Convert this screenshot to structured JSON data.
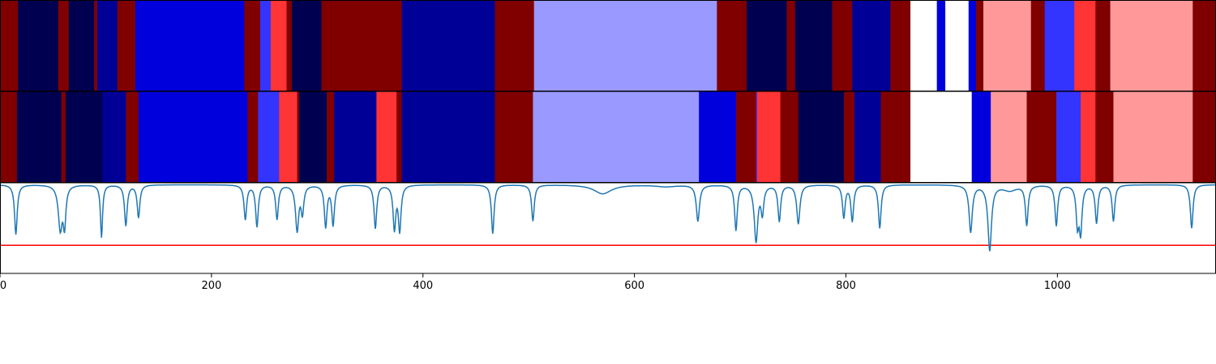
{
  "chart_data": {
    "type": "heatmap",
    "title": "",
    "xlabel": "",
    "ylabel": "",
    "xlim": [
      0,
      1150
    ],
    "x_ticks": [
      0,
      200,
      400,
      600,
      800,
      1000
    ],
    "colors": {
      "dark_red": "#800000",
      "navy": "#000050",
      "dark_blue": "#000096",
      "blue": "#0000dc",
      "bright_blue": "#3434ff",
      "light_blue": "#9999ff",
      "red": "#ff3434",
      "pink": "#ff9999",
      "white": "#ffffff",
      "signal_line": "#1f77b4",
      "threshold_line": "#ff0000"
    },
    "rows": [
      {
        "segments": [
          {
            "start": 0,
            "end": 17,
            "color": "dark_red"
          },
          {
            "start": 17,
            "end": 55,
            "color": "navy"
          },
          {
            "start": 55,
            "end": 65,
            "color": "dark_red"
          },
          {
            "start": 65,
            "end": 89,
            "color": "navy"
          },
          {
            "start": 89,
            "end": 92,
            "color": "dark_red"
          },
          {
            "start": 92,
            "end": 111,
            "color": "dark_blue"
          },
          {
            "start": 111,
            "end": 128,
            "color": "dark_red"
          },
          {
            "start": 128,
            "end": 231,
            "color": "blue"
          },
          {
            "start": 231,
            "end": 246,
            "color": "dark_red"
          },
          {
            "start": 246,
            "end": 256,
            "color": "bright_blue"
          },
          {
            "start": 256,
            "end": 271,
            "color": "red"
          },
          {
            "start": 271,
            "end": 276,
            "color": "dark_red"
          },
          {
            "start": 276,
            "end": 304,
            "color": "navy"
          },
          {
            "start": 304,
            "end": 380,
            "color": "dark_red"
          },
          {
            "start": 380,
            "end": 468,
            "color": "dark_blue"
          },
          {
            "start": 468,
            "end": 505,
            "color": "dark_red"
          },
          {
            "start": 505,
            "end": 678,
            "color": "light_blue"
          },
          {
            "start": 678,
            "end": 706,
            "color": "dark_red"
          },
          {
            "start": 706,
            "end": 744,
            "color": "navy"
          },
          {
            "start": 744,
            "end": 752,
            "color": "dark_red"
          },
          {
            "start": 752,
            "end": 787,
            "color": "navy"
          },
          {
            "start": 787,
            "end": 806,
            "color": "dark_red"
          },
          {
            "start": 806,
            "end": 842,
            "color": "dark_blue"
          },
          {
            "start": 842,
            "end": 861,
            "color": "dark_red"
          },
          {
            "start": 861,
            "end": 886,
            "color": "white"
          },
          {
            "start": 886,
            "end": 894,
            "color": "blue"
          },
          {
            "start": 894,
            "end": 916,
            "color": "white"
          },
          {
            "start": 916,
            "end": 923,
            "color": "blue"
          },
          {
            "start": 923,
            "end": 930,
            "color": "dark_red"
          },
          {
            "start": 930,
            "end": 975,
            "color": "pink"
          },
          {
            "start": 975,
            "end": 988,
            "color": "dark_red"
          },
          {
            "start": 988,
            "end": 1016,
            "color": "bright_blue"
          },
          {
            "start": 1016,
            "end": 1036,
            "color": "red"
          },
          {
            "start": 1036,
            "end": 1050,
            "color": "dark_red"
          },
          {
            "start": 1050,
            "end": 1128,
            "color": "pink"
          },
          {
            "start": 1128,
            "end": 1150,
            "color": "dark_red"
          }
        ]
      },
      {
        "segments": [
          {
            "start": 0,
            "end": 16,
            "color": "dark_red"
          },
          {
            "start": 16,
            "end": 58,
            "color": "navy"
          },
          {
            "start": 58,
            "end": 62,
            "color": "dark_red"
          },
          {
            "start": 62,
            "end": 97,
            "color": "navy"
          },
          {
            "start": 97,
            "end": 119,
            "color": "dark_blue"
          },
          {
            "start": 119,
            "end": 131,
            "color": "dark_red"
          },
          {
            "start": 131,
            "end": 234,
            "color": "blue"
          },
          {
            "start": 234,
            "end": 244,
            "color": "dark_red"
          },
          {
            "start": 244,
            "end": 264,
            "color": "bright_blue"
          },
          {
            "start": 264,
            "end": 281,
            "color": "red"
          },
          {
            "start": 281,
            "end": 283,
            "color": "dark_red"
          },
          {
            "start": 283,
            "end": 309,
            "color": "navy"
          },
          {
            "start": 309,
            "end": 316,
            "color": "dark_red"
          },
          {
            "start": 316,
            "end": 356,
            "color": "dark_blue"
          },
          {
            "start": 356,
            "end": 375,
            "color": "red"
          },
          {
            "start": 375,
            "end": 380,
            "color": "dark_red"
          },
          {
            "start": 380,
            "end": 468,
            "color": "dark_blue"
          },
          {
            "start": 468,
            "end": 504,
            "color": "dark_red"
          },
          {
            "start": 504,
            "end": 661,
            "color": "light_blue"
          },
          {
            "start": 661,
            "end": 696,
            "color": "blue"
          },
          {
            "start": 696,
            "end": 715,
            "color": "dark_red"
          },
          {
            "start": 715,
            "end": 716,
            "color": "bright_blue"
          },
          {
            "start": 716,
            "end": 738,
            "color": "red"
          },
          {
            "start": 738,
            "end": 755,
            "color": "dark_red"
          },
          {
            "start": 755,
            "end": 798,
            "color": "navy"
          },
          {
            "start": 798,
            "end": 808,
            "color": "dark_red"
          },
          {
            "start": 808,
            "end": 833,
            "color": "dark_blue"
          },
          {
            "start": 833,
            "end": 861,
            "color": "dark_red"
          },
          {
            "start": 861,
            "end": 919,
            "color": "white"
          },
          {
            "start": 919,
            "end": 937,
            "color": "blue"
          },
          {
            "start": 937,
            "end": 971,
            "color": "pink"
          },
          {
            "start": 971,
            "end": 999,
            "color": "dark_red"
          },
          {
            "start": 999,
            "end": 1022,
            "color": "bright_blue"
          },
          {
            "start": 1022,
            "end": 1036,
            "color": "red"
          },
          {
            "start": 1036,
            "end": 1053,
            "color": "dark_red"
          },
          {
            "start": 1053,
            "end": 1128,
            "color": "pink"
          },
          {
            "start": 1128,
            "end": 1150,
            "color": "dark_red"
          }
        ]
      }
    ],
    "signal": {
      "type": "line",
      "ylim": [
        0,
        1
      ],
      "baseline": 0.98,
      "threshold": 0.31,
      "dips": [
        {
          "x": 15,
          "depth": 0.55,
          "width": 1.5
        },
        {
          "x": 57,
          "depth": 0.48,
          "width": 2.2
        },
        {
          "x": 61,
          "depth": 0.42,
          "width": 1.5
        },
        {
          "x": 96,
          "depth": 0.58,
          "width": 1.2
        },
        {
          "x": 119,
          "depth": 0.45,
          "width": 1.5
        },
        {
          "x": 131,
          "depth": 0.36,
          "width": 1.5
        },
        {
          "x": 232,
          "depth": 0.38,
          "width": 1.5
        },
        {
          "x": 243,
          "depth": 0.46,
          "width": 1.5
        },
        {
          "x": 262,
          "depth": 0.38,
          "width": 1.5
        },
        {
          "x": 281,
          "depth": 0.5,
          "width": 1.8
        },
        {
          "x": 286,
          "depth": 0.3,
          "width": 1.5
        },
        {
          "x": 308,
          "depth": 0.46,
          "width": 1.5
        },
        {
          "x": 315,
          "depth": 0.44,
          "width": 1.5
        },
        {
          "x": 355,
          "depth": 0.48,
          "width": 1.5
        },
        {
          "x": 373,
          "depth": 0.48,
          "width": 1.5
        },
        {
          "x": 378,
          "depth": 0.5,
          "width": 1.5
        },
        {
          "x": 466,
          "depth": 0.54,
          "width": 1.5
        },
        {
          "x": 504,
          "depth": 0.4,
          "width": 1.5
        },
        {
          "x": 570,
          "depth": 0.1,
          "width": 10
        },
        {
          "x": 630,
          "depth": 0.02,
          "width": 12
        },
        {
          "x": 660,
          "depth": 0.4,
          "width": 1.8
        },
        {
          "x": 696,
          "depth": 0.5,
          "width": 1.5
        },
        {
          "x": 715,
          "depth": 0.62,
          "width": 2.0
        },
        {
          "x": 721,
          "depth": 0.3,
          "width": 1.5
        },
        {
          "x": 737,
          "depth": 0.4,
          "width": 1.5
        },
        {
          "x": 755,
          "depth": 0.43,
          "width": 1.8
        },
        {
          "x": 798,
          "depth": 0.36,
          "width": 1.5
        },
        {
          "x": 806,
          "depth": 0.4,
          "width": 1.5
        },
        {
          "x": 832,
          "depth": 0.48,
          "width": 1.5
        },
        {
          "x": 918,
          "depth": 0.52,
          "width": 1.8
        },
        {
          "x": 936,
          "depth": 0.72,
          "width": 2.0
        },
        {
          "x": 955,
          "depth": 0.06,
          "width": 8
        },
        {
          "x": 971,
          "depth": 0.44,
          "width": 1.5
        },
        {
          "x": 999,
          "depth": 0.45,
          "width": 1.5
        },
        {
          "x": 1019,
          "depth": 0.42,
          "width": 1.5
        },
        {
          "x": 1022,
          "depth": 0.5,
          "width": 1.5
        },
        {
          "x": 1037,
          "depth": 0.42,
          "width": 1.5
        },
        {
          "x": 1053,
          "depth": 0.4,
          "width": 1.5
        },
        {
          "x": 1127,
          "depth": 0.48,
          "width": 1.5
        }
      ]
    }
  }
}
